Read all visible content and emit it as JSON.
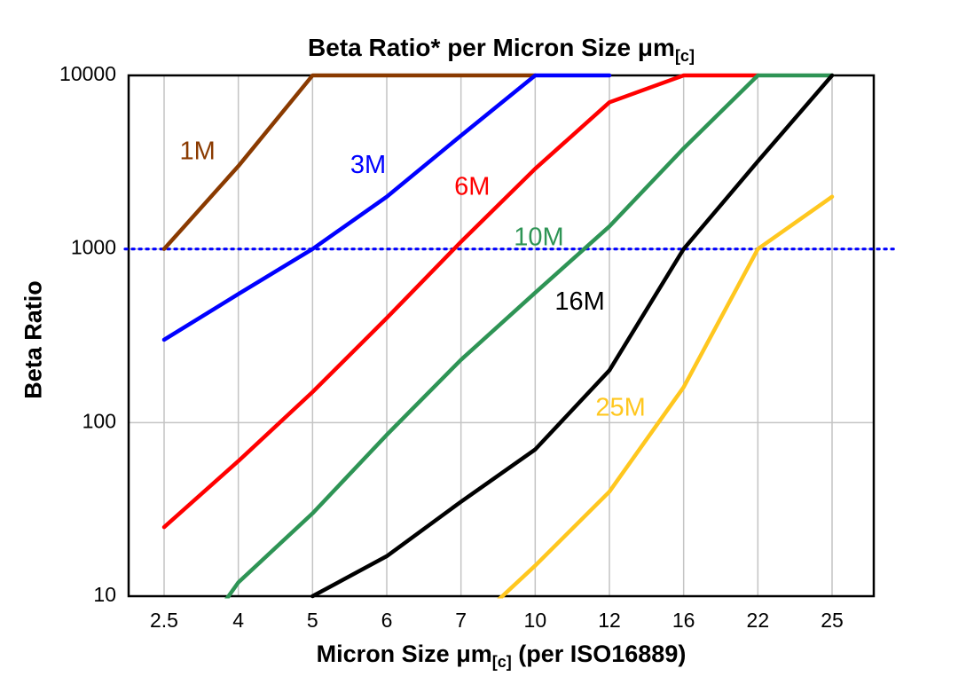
{
  "chart_data": {
    "type": "line",
    "title": "Beta Ratio* per Micron Size μm[c]",
    "title_parts": {
      "main": "Beta Ratio* per Micron Size μm",
      "sub": "[c]"
    },
    "xlabel": "Micron Size μm[c] (per ISO16889)",
    "xlabel_parts": {
      "main": "Micron Size μm",
      "sub": "[c]",
      "tail": " (per ISO16889)"
    },
    "ylabel": "Beta Ratio",
    "yscale": "log",
    "ylim": [
      10,
      10000
    ],
    "yticks": [
      10,
      100,
      1000,
      10000
    ],
    "grid": true,
    "grid_color": "#c4c4c4",
    "legend_position": "inline-labels",
    "categories": [
      "2.5",
      "4",
      "5",
      "6",
      "7",
      "10",
      "12",
      "16",
      "22",
      "25"
    ],
    "reference_line": {
      "value": 1000,
      "color": "#0000ff",
      "style": "dotted"
    },
    "series": [
      {
        "name": "1M",
        "color": "#8a3a00",
        "values": [
          1000,
          3000,
          10000,
          10000,
          10000,
          10000,
          null,
          null,
          null,
          null
        ]
      },
      {
        "name": "3M",
        "color": "#0000ff",
        "values": [
          300,
          550,
          1000,
          2000,
          4500,
          10000,
          10000,
          null,
          null,
          null
        ]
      },
      {
        "name": "6M",
        "color": "#ff0000",
        "values": [
          25,
          60,
          150,
          400,
          1100,
          2900,
          7000,
          10000,
          10000,
          null
        ]
      },
      {
        "name": "10M",
        "color": "#2e9455",
        "values": [
          3,
          12,
          30,
          85,
          230,
          560,
          1350,
          3800,
          10000,
          10000
        ]
      },
      {
        "name": "16M",
        "color": "#000000",
        "values": [
          null,
          null,
          10,
          17,
          35,
          70,
          200,
          1000,
          3200,
          10000
        ]
      },
      {
        "name": "25M",
        "color": "#ffc71f",
        "values": [
          null,
          null,
          null,
          null,
          6,
          15,
          40,
          160,
          1000,
          2000
        ]
      }
    ],
    "labels": [
      {
        "text": "1M",
        "color": "#8a3a00",
        "x_index": 0.45,
        "value": 3600
      },
      {
        "text": "3M",
        "color": "#0000ff",
        "x_index": 2.75,
        "value": 3000
      },
      {
        "text": "6M",
        "color": "#ff0000",
        "x_index": 4.15,
        "value": 2250
      },
      {
        "text": "10M",
        "color": "#2e9455",
        "x_index": 5.05,
        "value": 1150
      },
      {
        "text": "16M",
        "color": "#000000",
        "x_index": 5.6,
        "value": 490
      },
      {
        "text": "25M",
        "color": "#ffc71f",
        "x_index": 6.15,
        "value": 120
      }
    ]
  }
}
